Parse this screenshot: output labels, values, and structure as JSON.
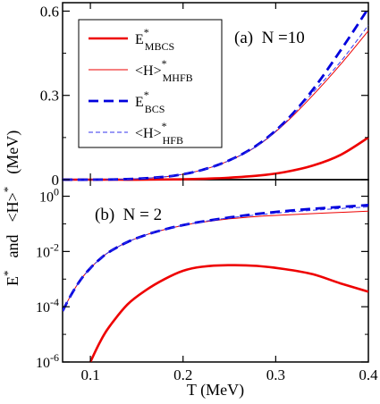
{
  "figure": {
    "ylabel_parts": [
      "E",
      "*",
      "and",
      "<H>",
      "*",
      "(MeV)"
    ],
    "xlabel": "T (MeV)"
  },
  "chart_data": [
    {
      "type": "line",
      "panel_label": "(a)  N =10",
      "xlim": [
        0.07,
        0.4
      ],
      "ylim": [
        0,
        0.63
      ],
      "yscale": "linear",
      "xticks": [
        0.1,
        0.2,
        0.3,
        0.4
      ],
      "xtick_labels": [
        "",
        "",
        "",
        ""
      ],
      "yticks": [
        0,
        0.3,
        0.6
      ],
      "ytick_labels": [
        "0",
        "0.3",
        "0.6"
      ],
      "legend_position": "top-left",
      "legend": [
        {
          "base": "E",
          "sup": "*",
          "sub": "MBCS",
          "color": "#ee0000",
          "style": "solid-thick"
        },
        {
          "base": "<H>",
          "sup": "*",
          "sub": "MHFB",
          "color": "#ee0000",
          "style": "solid-thin"
        },
        {
          "base": "E",
          "sup": "*",
          "sub": "BCS",
          "color": "#0000dd",
          "style": "dashed-thick"
        },
        {
          "base": "<H>",
          "sup": "*",
          "sub": "HFB",
          "color": "#3333ee",
          "style": "dashed-thin"
        }
      ],
      "x": [
        0.07,
        0.1,
        0.13,
        0.16,
        0.19,
        0.22,
        0.25,
        0.28,
        0.31,
        0.34,
        0.37,
        0.4
      ],
      "series": [
        {
          "name": "E*MBCS",
          "values": [
            0,
            0,
            0,
            0,
            0.001,
            0.003,
            0.007,
            0.014,
            0.027,
            0.05,
            0.088,
            0.15
          ]
        },
        {
          "name": "<H>*MHFB",
          "values": [
            0,
            0,
            0.001,
            0.005,
            0.014,
            0.034,
            0.068,
            0.12,
            0.2,
            0.3,
            0.41,
            0.53
          ]
        },
        {
          "name": "E*BCS",
          "values": [
            0,
            0,
            0.001,
            0.005,
            0.014,
            0.034,
            0.069,
            0.123,
            0.206,
            0.32,
            0.46,
            0.61
          ]
        },
        {
          "name": "<H>*HFB",
          "values": [
            0,
            0,
            0.001,
            0.005,
            0.014,
            0.034,
            0.068,
            0.121,
            0.203,
            0.31,
            0.42,
            0.55
          ]
        }
      ]
    },
    {
      "type": "line",
      "panel_label": "(b)  N = 2",
      "xlim": [
        0.07,
        0.4
      ],
      "ylim_log10": [
        -6,
        0.6
      ],
      "yscale": "log",
      "xticks": [
        0.1,
        0.2,
        0.3,
        0.4
      ],
      "xtick_labels": [
        "0.1",
        "0.2",
        "0.3",
        "0.4"
      ],
      "yticks_exp": [
        -6,
        -4,
        -2,
        0
      ],
      "ytick_base": "10",
      "x": [
        0.07,
        0.08,
        0.09,
        0.1,
        0.11,
        0.12,
        0.14,
        0.16,
        0.18,
        0.2,
        0.22,
        0.25,
        0.28,
        0.31,
        0.34,
        0.37,
        0.4
      ],
      "series": [
        {
          "name": "E*MBCS",
          "values": [
            null,
            null,
            null,
            1e-06,
            5e-06,
            1.8e-05,
            0.00012,
            0.0004,
            0.001,
            0.002,
            0.0028,
            0.0032,
            0.003,
            0.0023,
            0.0015,
            0.0007,
            0.00035
          ]
        },
        {
          "name": "<H>*MHFB",
          "values": [
            7e-05,
            0.0003,
            0.001,
            0.0025,
            0.0052,
            0.0095,
            0.022,
            0.04,
            0.062,
            0.088,
            0.115,
            0.152,
            0.185,
            0.21,
            0.235,
            0.26,
            0.29
          ]
        },
        {
          "name": "E*BCS",
          "values": [
            7e-05,
            0.0003,
            0.001,
            0.0025,
            0.0052,
            0.0095,
            0.022,
            0.04,
            0.063,
            0.09,
            0.12,
            0.17,
            0.23,
            0.29,
            0.35,
            0.41,
            0.48
          ]
        },
        {
          "name": "<H>*HFB",
          "values": [
            7e-05,
            0.0003,
            0.001,
            0.0025,
            0.0052,
            0.0095,
            0.022,
            0.04,
            0.063,
            0.089,
            0.118,
            0.165,
            0.21,
            0.26,
            0.31,
            0.36,
            0.41
          ]
        }
      ]
    }
  ]
}
